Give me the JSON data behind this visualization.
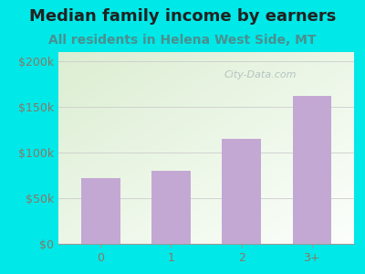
{
  "title": "Median family income by earners",
  "subtitle": "All residents in Helena West Side, MT",
  "categories": [
    "0",
    "1",
    "2",
    "3+"
  ],
  "values": [
    72000,
    80000,
    115000,
    162000
  ],
  "bar_color": "#c4a8d4",
  "outer_bg": "#00e8e8",
  "plot_bg_topleft": "#d8efd0",
  "plot_bg_bottomright": "#f5fff5",
  "title_color": "#222222",
  "subtitle_color": "#4a9090",
  "tick_color": "#887766",
  "watermark_text": "City-Data.com",
  "watermark_color": "#aabbbb",
  "ylim": [
    0,
    210000
  ],
  "yticks": [
    0,
    50000,
    100000,
    150000,
    200000
  ],
  "ytick_labels": [
    "$0",
    "$50k",
    "$100k",
    "$150k",
    "$200k"
  ],
  "title_fontsize": 13,
  "subtitle_fontsize": 10,
  "tick_fontsize": 9
}
